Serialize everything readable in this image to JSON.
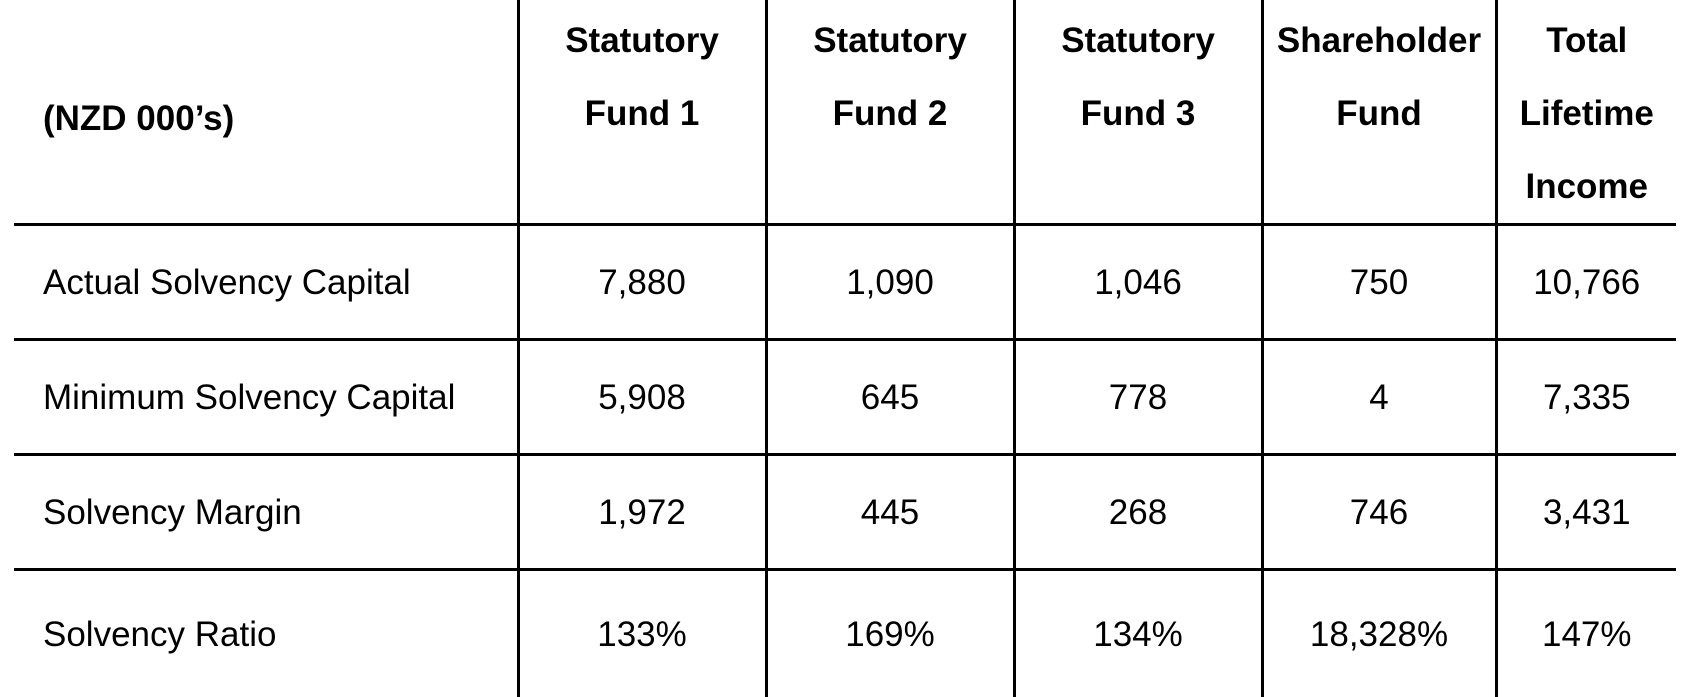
{
  "table": {
    "header": {
      "corner": "(NZD 000’s)",
      "columns": [
        {
          "line1": "Statutory",
          "line2": "Fund 1",
          "line3": ""
        },
        {
          "line1": "Statutory",
          "line2": "Fund 2",
          "line3": ""
        },
        {
          "line1": "Statutory",
          "line2": "Fund 3",
          "line3": ""
        },
        {
          "line1": "Shareholder",
          "line2": "Fund",
          "line3": ""
        },
        {
          "line1": "Total",
          "line2": "Lifetime",
          "line3": "Income"
        }
      ]
    },
    "rows": [
      {
        "label": "Actual Solvency Capital",
        "values": [
          "7,880",
          "1,090",
          "1,046",
          "750",
          "10,766"
        ]
      },
      {
        "label": "Minimum Solvency Capital",
        "values": [
          "5,908",
          "645",
          "778",
          "4",
          "7,335"
        ]
      },
      {
        "label": "Solvency Margin",
        "values": [
          "1,972",
          "445",
          "268",
          "746",
          "3,431"
        ]
      },
      {
        "label": "Solvency Ratio",
        "values": [
          "133%",
          "169%",
          "134%",
          "18,328%",
          "147%"
        ]
      }
    ]
  }
}
